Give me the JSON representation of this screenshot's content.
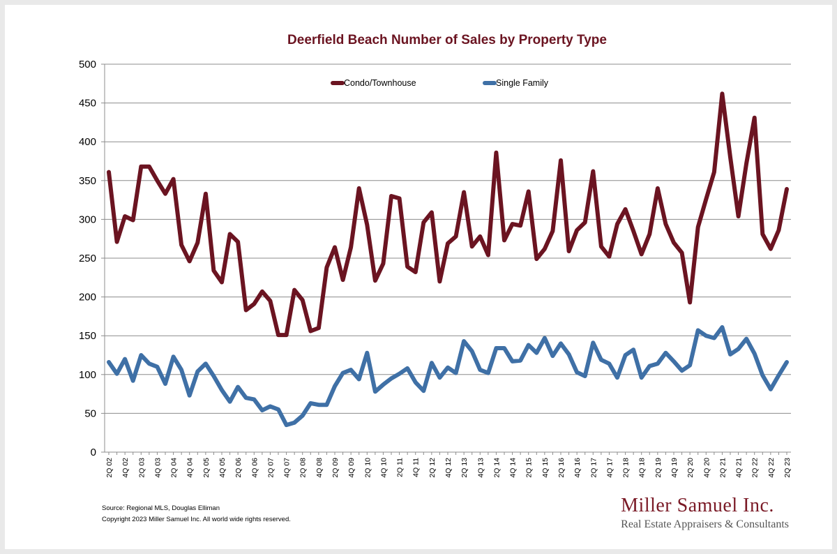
{
  "colors": {
    "condo": "#6b1421",
    "single_family": "#3f70a6",
    "brand": "#7a1a26",
    "title": "#6b1421"
  },
  "footer": {
    "source": "Source: Regional MLS, Douglas Elliman",
    "copyright": "Copyright 2023 Miller Samuel Inc.  All world wide rights reserved."
  },
  "brand": {
    "name": "Miller Samuel Inc.",
    "tagline": "Real Estate Appraisers & Consultants"
  },
  "chart_data": {
    "type": "line",
    "title": "Deerfield Beach Number of Sales by Property Type",
    "xlabel": "",
    "ylabel": "",
    "ylim": [
      0,
      500
    ],
    "yticks": [
      0,
      50,
      100,
      150,
      200,
      250,
      300,
      350,
      400,
      450,
      500
    ],
    "grid": "horizontal",
    "legend_position": "top-center",
    "x": [
      "2Q 02",
      "3Q 02",
      "4Q 02",
      "1Q 03",
      "2Q 03",
      "3Q 03",
      "4Q 03",
      "1Q 04",
      "2Q 04",
      "3Q 04",
      "4Q 04",
      "1Q 05",
      "2Q 05",
      "3Q 05",
      "4Q 05",
      "1Q 06",
      "2Q 06",
      "3Q 06",
      "4Q 06",
      "1Q 07",
      "2Q 07",
      "3Q 07",
      "4Q 07",
      "1Q 08",
      "2Q 08",
      "3Q 08",
      "4Q 08",
      "1Q 09",
      "2Q 09",
      "3Q 09",
      "4Q 09",
      "1Q 10",
      "2Q 10",
      "3Q 10",
      "4Q 10",
      "1Q 11",
      "2Q 11",
      "3Q 11",
      "4Q 11",
      "1Q 12",
      "2Q 12",
      "3Q 12",
      "4Q 12",
      "1Q 13",
      "2Q 13",
      "3Q 13",
      "4Q 13",
      "1Q 14",
      "2Q 14",
      "3Q 14",
      "4Q 14",
      "1Q 15",
      "2Q 15",
      "3Q 15",
      "4Q 15",
      "1Q 16",
      "2Q 16",
      "3Q 16",
      "4Q 16",
      "1Q 17",
      "2Q 17",
      "3Q 17",
      "4Q 17",
      "1Q 18",
      "2Q 18",
      "3Q 18",
      "4Q 18",
      "1Q 19",
      "2Q 19",
      "3Q 19",
      "4Q 19",
      "1Q 20",
      "2Q 20",
      "3Q 20",
      "4Q 20",
      "1Q 21",
      "2Q 21",
      "3Q 21",
      "4Q 21",
      "1Q 22",
      "2Q 22",
      "3Q 22",
      "4Q 22",
      "1Q 23",
      "2Q 23"
    ],
    "tick_labels": [
      "2Q 02",
      "4Q 02",
      "2Q 03",
      "4Q 03",
      "2Q 04",
      "4Q 04",
      "2Q 05",
      "4Q 05",
      "2Q 06",
      "4Q 06",
      "2Q 07",
      "4Q 07",
      "2Q 08",
      "4Q 08",
      "2Q 09",
      "4Q 09",
      "2Q 10",
      "4Q 10",
      "2Q 11",
      "4Q 11",
      "2Q 12",
      "4Q 12",
      "2Q 13",
      "4Q 13",
      "2Q 14",
      "4Q 14",
      "2Q 15",
      "4Q 15",
      "2Q 16",
      "4Q 16",
      "2Q 17",
      "4Q 17",
      "2Q 18",
      "4Q 18",
      "2Q 19",
      "4Q 19",
      "2Q 20",
      "4Q 20",
      "2Q 21",
      "4Q 21",
      "2Q 22",
      "4Q 22",
      "2Q 23"
    ],
    "series": [
      {
        "name": "Condo/Townhouse",
        "color": "#6b1421",
        "values": [
          361,
          271,
          304,
          299,
          368,
          368,
          350,
          333,
          352,
          267,
          246,
          270,
          333,
          234,
          219,
          281,
          271,
          183,
          191,
          207,
          195,
          151,
          151,
          209,
          196,
          156,
          160,
          238,
          264,
          222,
          264,
          340,
          293,
          221,
          243,
          330,
          327,
          239,
          232,
          296,
          309,
          220,
          269,
          278,
          335,
          265,
          278,
          254,
          386,
          273,
          294,
          292,
          336,
          249,
          262,
          285,
          376,
          259,
          286,
          296,
          362,
          265,
          252,
          294,
          313,
          285,
          255,
          281,
          340,
          294,
          270,
          257,
          193,
          290,
          326,
          361,
          462,
          380,
          304,
          372,
          431,
          281,
          262,
          286,
          339
        ]
      },
      {
        "name": "Single Family",
        "color": "#3f70a6",
        "values": [
          116,
          101,
          120,
          92,
          125,
          114,
          110,
          88,
          123,
          106,
          73,
          104,
          114,
          98,
          80,
          65,
          84,
          70,
          68,
          54,
          59,
          55,
          35,
          38,
          47,
          63,
          61,
          61,
          85,
          102,
          106,
          94,
          128,
          78,
          87,
          95,
          101,
          108,
          90,
          79,
          115,
          96,
          109,
          102,
          143,
          130,
          106,
          102,
          134,
          134,
          117,
          118,
          138,
          128,
          147,
          124,
          140,
          126,
          103,
          98,
          141,
          119,
          114,
          96,
          125,
          132,
          96,
          111,
          114,
          128,
          117,
          105,
          112,
          157,
          150,
          147,
          161,
          126,
          133,
          146,
          127,
          99,
          81,
          99,
          116
        ]
      }
    ]
  }
}
